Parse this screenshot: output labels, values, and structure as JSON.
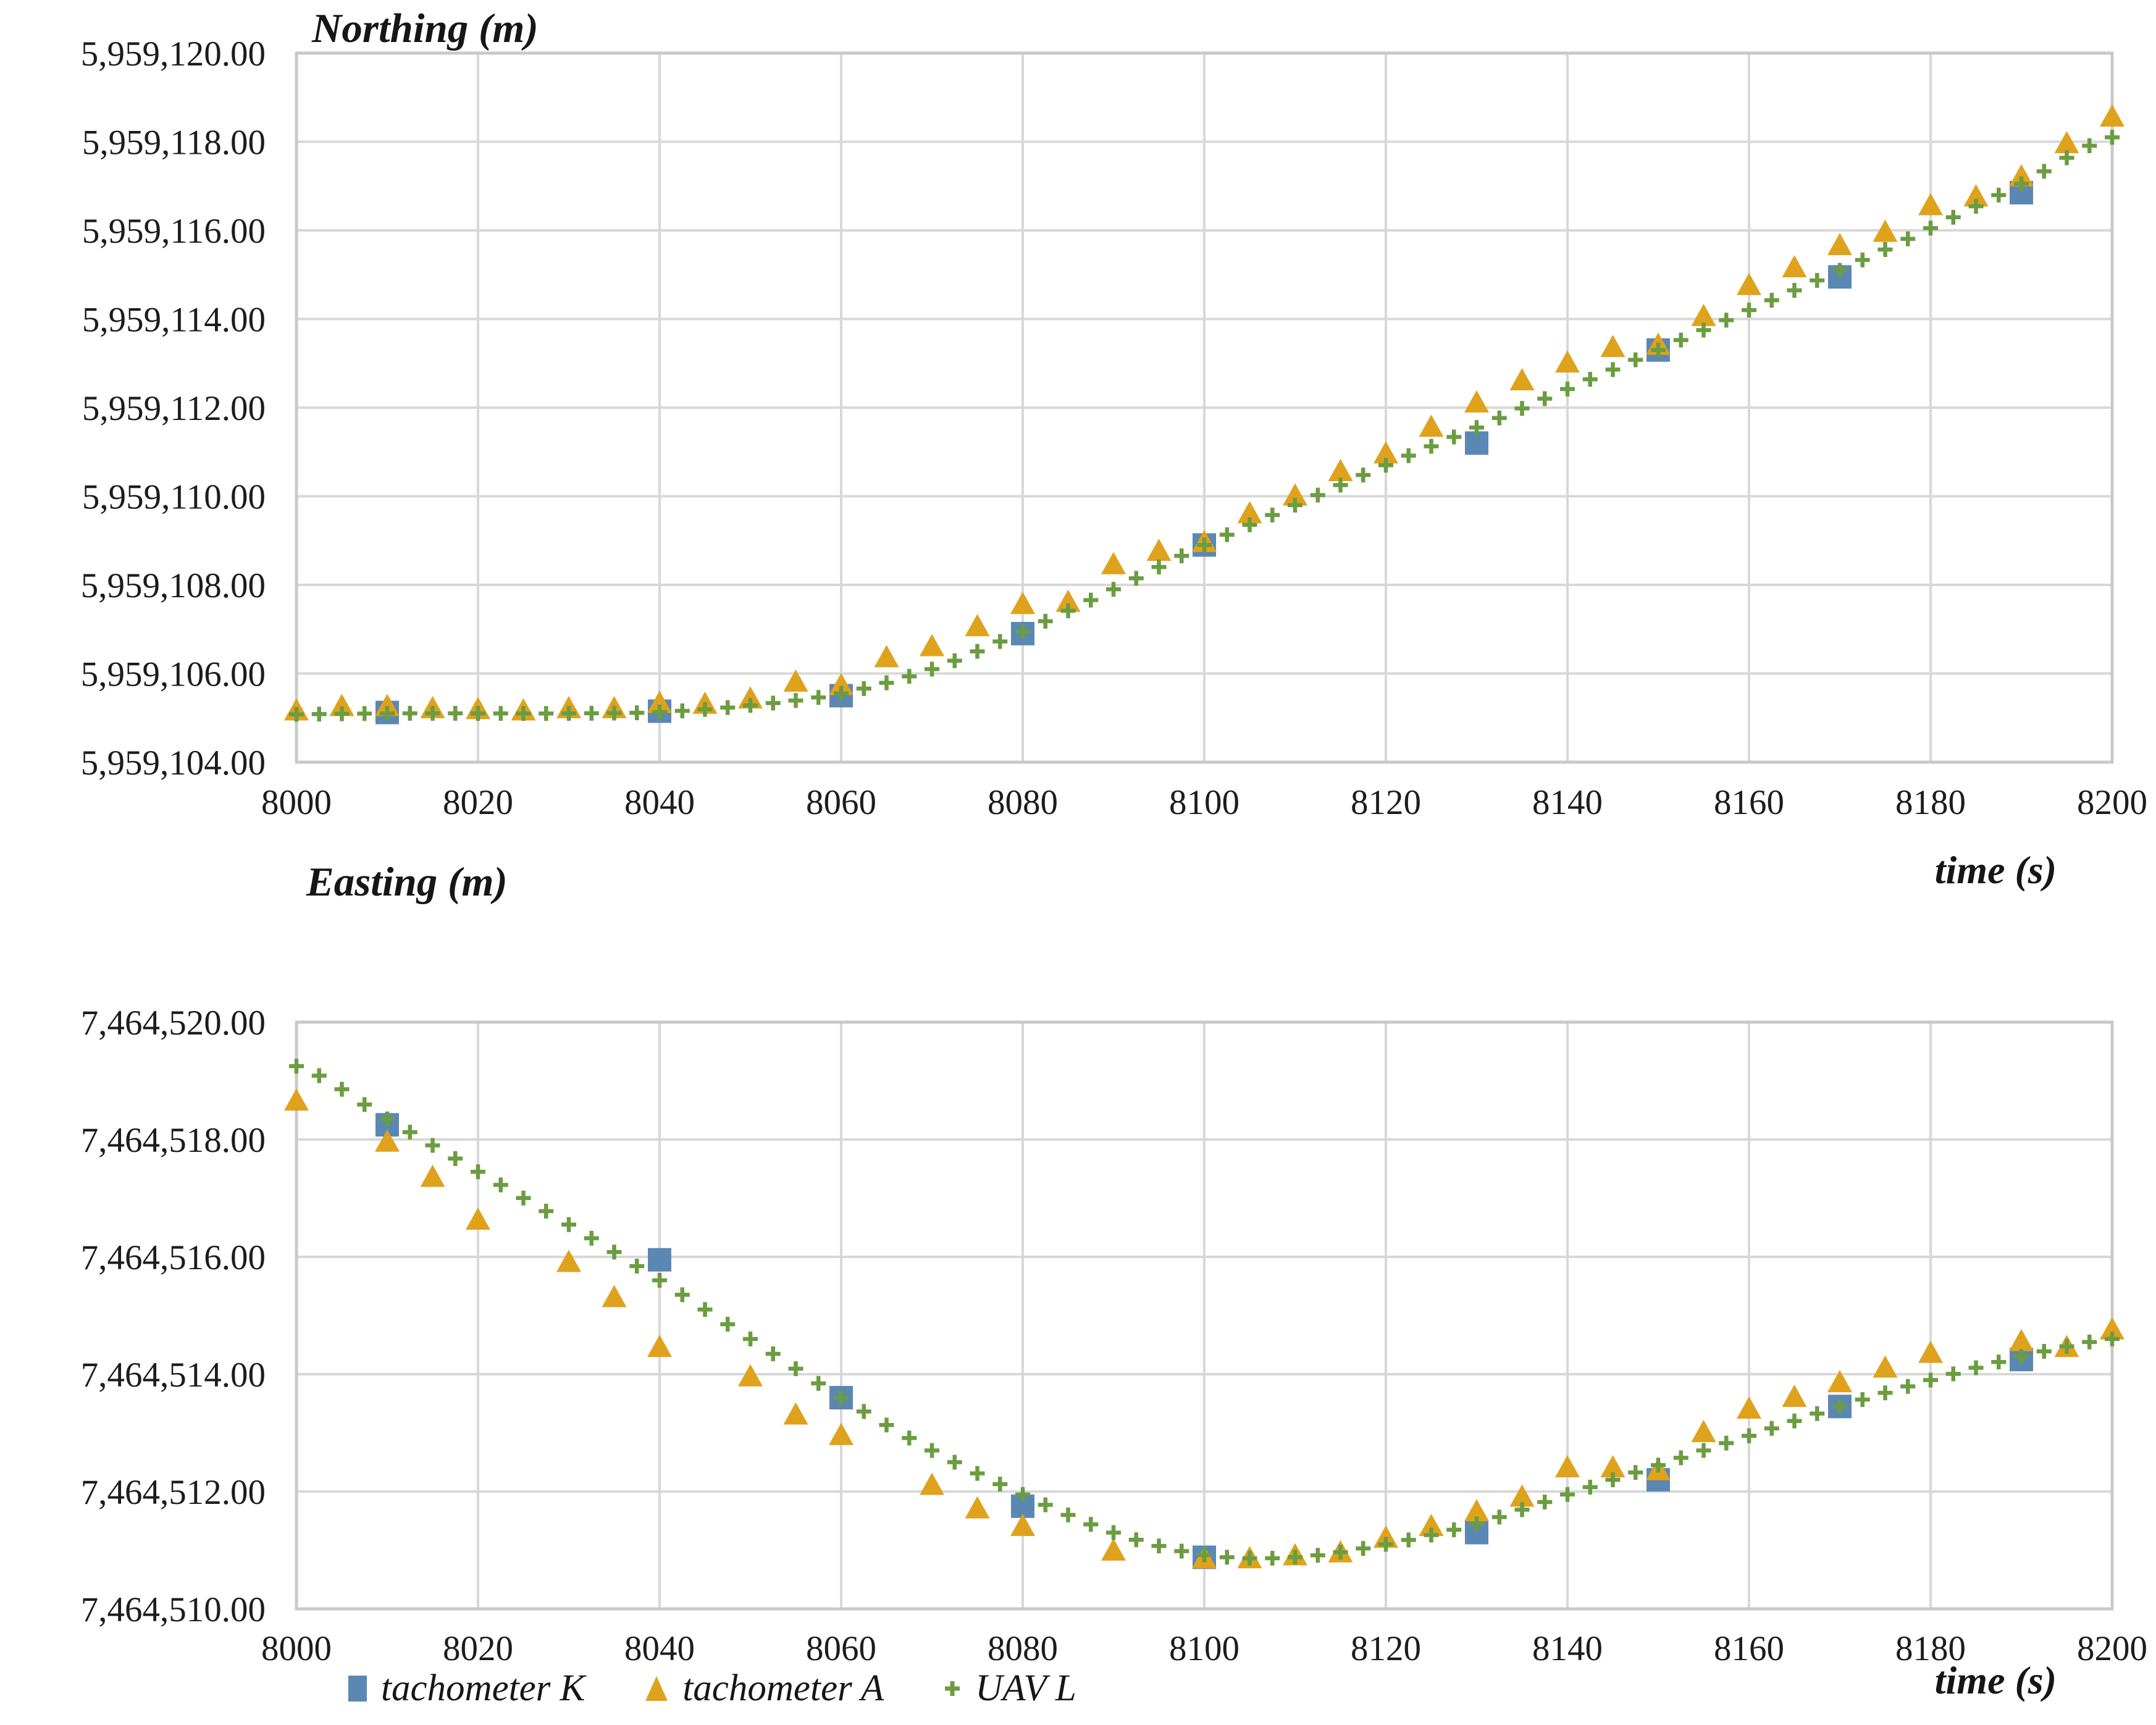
{
  "colors": {
    "tachometer_k_blue": "#5B87B5",
    "tachometer_a_gold": "#DFA21C",
    "uav_l_green": "#6B9C41",
    "gridline_gray": "#D8D8D8",
    "axis_border_gray": "#C9C9C9",
    "text": "#1C1C1C"
  },
  "legend": {
    "items": [
      {
        "label": "tachometer K",
        "marker": "square-icon",
        "color": "#5B87B5"
      },
      {
        "label": "tachometer A",
        "marker": "triangle-icon",
        "color": "#DFA21C"
      },
      {
        "label": "UAV L",
        "marker": "plus-icon",
        "color": "#6B9C41"
      }
    ]
  },
  "chart_data": [
    {
      "type": "scatter",
      "title": "Northing (m)",
      "xlabel": "time (s)",
      "ylabel": "Northing (m)",
      "xlim": [
        8000,
        8200
      ],
      "ylim": [
        5959104,
        5959120
      ],
      "grid": true,
      "legend_position": "below-second-chart",
      "x_ticks": [
        8000,
        8020,
        8040,
        8060,
        8080,
        8100,
        8120,
        8140,
        8160,
        8180,
        8200
      ],
      "x_tick_labels": [
        "8000",
        "8020",
        "8040",
        "8060",
        "8080",
        "8100",
        "8120",
        "8140",
        "8160",
        "8180",
        "8200"
      ],
      "y_ticks": [
        5959120,
        5959118,
        5959116,
        5959114,
        5959112,
        5959110,
        5959108,
        5959106,
        5959104
      ],
      "y_tick_labels": [
        "5,959,120.00",
        "5,959,118.00",
        "5,959,116.00",
        "5,959,114.00",
        "5,959,112.00",
        "5,959,110.00",
        "5,959,108.00",
        "5,959,106.00",
        "5,959,104.00"
      ],
      "series": [
        {
          "name": "tachometer K",
          "marker": "square",
          "color": "#5B87B5",
          "points": [
            [
              8010,
              5959105.12
            ],
            [
              8040,
              5959105.15
            ],
            [
              8060,
              5959105.5
            ],
            [
              8080,
              5959106.9
            ],
            [
              8100,
              5959108.9
            ],
            [
              8130,
              5959111.2
            ],
            [
              8150,
              5959113.3
            ],
            [
              8170,
              5959114.95
            ],
            [
              8190,
              5959116.85
            ]
          ]
        },
        {
          "name": "tachometer A",
          "marker": "triangle",
          "color": "#DFA21C",
          "points": [
            [
              8000,
              5959105.15
            ],
            [
              8005,
              5959105.25
            ],
            [
              8010,
              5959105.25
            ],
            [
              8015,
              5959105.2
            ],
            [
              8020,
              5959105.18
            ],
            [
              8025,
              5959105.15
            ],
            [
              8030,
              5959105.2
            ],
            [
              8035,
              5959105.2
            ],
            [
              8040,
              5959105.32
            ],
            [
              8045,
              5959105.3
            ],
            [
              8050,
              5959105.42
            ],
            [
              8055,
              5959105.8
            ],
            [
              8060,
              5959105.72
            ],
            [
              8065,
              5959106.35
            ],
            [
              8070,
              5959106.6
            ],
            [
              8075,
              5959107.05
            ],
            [
              8080,
              5959107.55
            ],
            [
              8085,
              5959107.6
            ],
            [
              8090,
              5959108.45
            ],
            [
              8095,
              5959108.75
            ],
            [
              8100,
              5959108.95
            ],
            [
              8105,
              5959109.6
            ],
            [
              8110,
              5959110.0
            ],
            [
              8115,
              5959110.55
            ],
            [
              8120,
              5959110.95
            ],
            [
              8125,
              5959111.55
            ],
            [
              8130,
              5959112.1
            ],
            [
              8135,
              5959112.6
            ],
            [
              8140,
              5959113.0
            ],
            [
              8145,
              5959113.35
            ],
            [
              8150,
              5959113.4
            ],
            [
              8155,
              5959114.05
            ],
            [
              8160,
              5959114.75
            ],
            [
              8165,
              5959115.15
            ],
            [
              8170,
              5959115.65
            ],
            [
              8175,
              5959115.95
            ],
            [
              8180,
              5959116.55
            ],
            [
              8185,
              5959116.75
            ],
            [
              8190,
              5959117.2
            ],
            [
              8195,
              5959117.95
            ],
            [
              8200,
              5959118.55
            ]
          ]
        },
        {
          "name": "UAV L",
          "marker": "plus",
          "color": "#6B9C41",
          "sample_step": 2.5,
          "control_points": [
            [
              8000,
              5959105.08
            ],
            [
              8010,
              5959105.1
            ],
            [
              8020,
              5959105.1
            ],
            [
              8030,
              5959105.1
            ],
            [
              8040,
              5959105.13
            ],
            [
              8050,
              5959105.28
            ],
            [
              8060,
              5959105.55
            ],
            [
              8070,
              5959106.1
            ],
            [
              8080,
              5959106.95
            ],
            [
              8090,
              5959107.9
            ],
            [
              8100,
              5959108.9
            ],
            [
              8110,
              5959109.8
            ],
            [
              8120,
              5959110.7
            ],
            [
              8130,
              5959111.55
            ],
            [
              8140,
              5959112.42
            ],
            [
              8150,
              5959113.3
            ],
            [
              8160,
              5959114.2
            ],
            [
              8170,
              5959115.1
            ],
            [
              8180,
              5959116.05
            ],
            [
              8190,
              5959117.05
            ],
            [
              8200,
              5959118.1
            ]
          ]
        }
      ]
    },
    {
      "type": "scatter",
      "title": "Easting (m)",
      "xlabel": "time (s)",
      "ylabel": "Easting (m)",
      "xlim": [
        8000,
        8200
      ],
      "ylim": [
        7464510,
        7464520
      ],
      "grid": true,
      "legend_position": "below-figure",
      "x_ticks": [
        8000,
        8020,
        8040,
        8060,
        8080,
        8100,
        8120,
        8140,
        8160,
        8180,
        8200
      ],
      "x_tick_labels": [
        "8000",
        "8020",
        "8040",
        "8060",
        "8080",
        "8100",
        "8120",
        "8140",
        "8160",
        "8180",
        "8200"
      ],
      "y_ticks": [
        7464520,
        7464518,
        7464516,
        7464514,
        7464512,
        7464510
      ],
      "y_tick_labels": [
        "7,464,520.00",
        "7,464,518.00",
        "7,464,516.00",
        "7,464,514.00",
        "7,464,512.00",
        "7,464,510.00"
      ],
      "series": [
        {
          "name": "tachometer K",
          "marker": "square",
          "color": "#5B87B5",
          "points": [
            [
              8010,
              7464518.25
            ],
            [
              8040,
              7464515.95
            ],
            [
              8060,
              7464513.6
            ],
            [
              8080,
              7464511.75
            ],
            [
              8100,
              7464510.88
            ],
            [
              8130,
              7464511.3
            ],
            [
              8150,
              7464512.2
            ],
            [
              8170,
              7464513.45
            ],
            [
              8190,
              7464514.25
            ]
          ]
        },
        {
          "name": "tachometer A",
          "marker": "triangle",
          "color": "#DFA21C",
          "points": [
            [
              8000,
              7464518.65
            ],
            [
              8010,
              7464517.95
            ],
            [
              8015,
              7464517.35
            ],
            [
              8020,
              7464516.62
            ],
            [
              8030,
              7464515.9
            ],
            [
              8035,
              7464515.3
            ],
            [
              8040,
              7464514.45
            ],
            [
              8050,
              7464513.95
            ],
            [
              8055,
              7464513.3
            ],
            [
              8060,
              7464512.95
            ],
            [
              8070,
              7464512.1
            ],
            [
              8075,
              7464511.7
            ],
            [
              8080,
              7464511.4
            ],
            [
              8090,
              7464510.98
            ],
            [
              8100,
              7464510.85
            ],
            [
              8105,
              7464510.85
            ],
            [
              8110,
              7464510.9
            ],
            [
              8115,
              7464510.95
            ],
            [
              8120,
              7464511.2
            ],
            [
              8125,
              7464511.4
            ],
            [
              8130,
              7464511.65
            ],
            [
              8135,
              7464511.9
            ],
            [
              8140,
              7464512.4
            ],
            [
              8145,
              7464512.4
            ],
            [
              8150,
              7464512.35
            ],
            [
              8155,
              7464513.0
            ],
            [
              8160,
              7464513.4
            ],
            [
              8165,
              7464513.6
            ],
            [
              8170,
              7464513.85
            ],
            [
              8175,
              7464514.1
            ],
            [
              8180,
              7464514.35
            ],
            [
              8190,
              7464514.55
            ],
            [
              8195,
              7464514.45
            ],
            [
              8200,
              7464514.75
            ]
          ]
        },
        {
          "name": "UAV L",
          "marker": "plus",
          "color": "#6B9C41",
          "sample_step": 2.5,
          "control_points": [
            [
              8000,
              7464519.25
            ],
            [
              8010,
              7464518.35
            ],
            [
              8020,
              7464517.45
            ],
            [
              8030,
              7464516.55
            ],
            [
              8040,
              7464515.6
            ],
            [
              8050,
              7464514.6
            ],
            [
              8060,
              7464513.6
            ],
            [
              8070,
              7464512.7
            ],
            [
              8080,
              7464511.95
            ],
            [
              8090,
              7464511.3
            ],
            [
              8100,
              7464510.92
            ],
            [
              8110,
              7464510.88
            ],
            [
              8120,
              7464511.1
            ],
            [
              8130,
              7464511.45
            ],
            [
              8140,
              7464511.95
            ],
            [
              8150,
              7464512.45
            ],
            [
              8160,
              7464512.95
            ],
            [
              8170,
              7464513.45
            ],
            [
              8180,
              7464513.9
            ],
            [
              8190,
              7464514.3
            ],
            [
              8200,
              7464514.6
            ]
          ]
        }
      ]
    }
  ]
}
